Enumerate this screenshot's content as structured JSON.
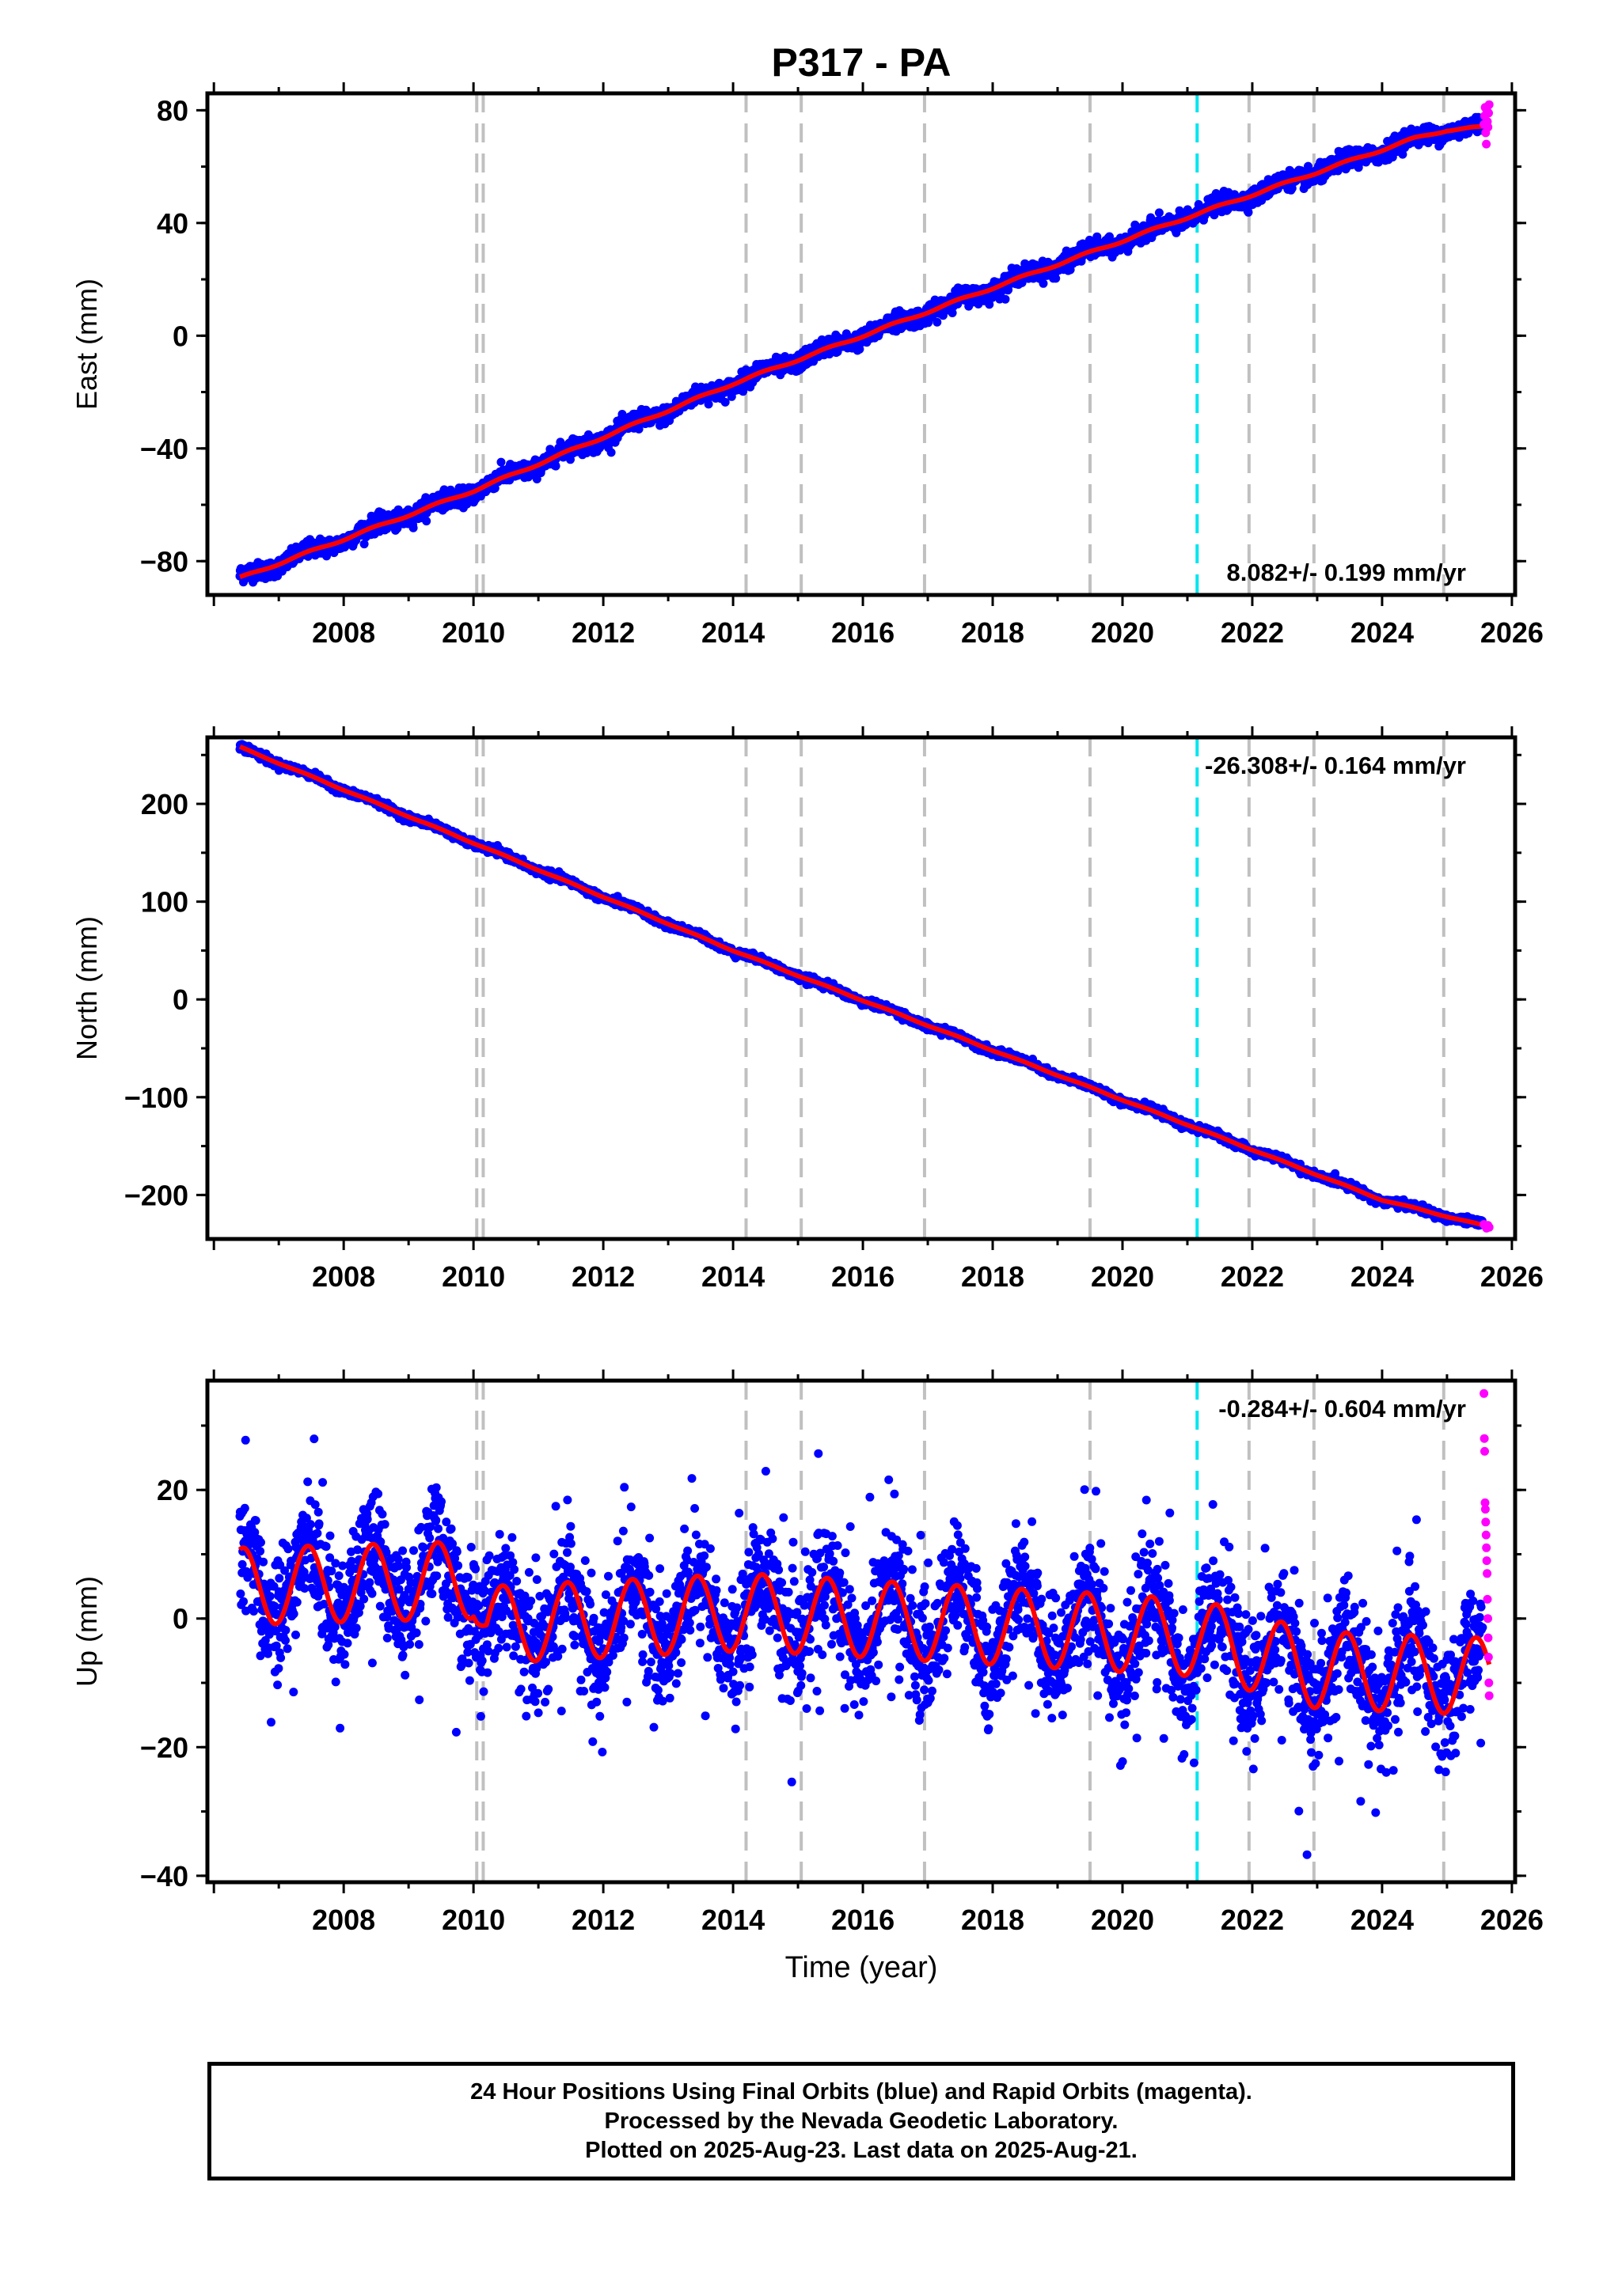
{
  "title": "P317 - PA",
  "footer": {
    "lines": [
      "24 Hour Positions Using Final Orbits (blue) and Rapid Orbits (magenta).",
      "Processed by the Nevada Geodetic Laboratory.",
      "Plotted on 2025-Aug-23. Last data on 2025-Aug-21."
    ]
  },
  "colors": {
    "final_orbits": "#0000ff",
    "rapid_orbits": "#ff00ff",
    "model_fit": "#ff0000",
    "equipment_change": "#c0c0c0",
    "earthquake": "#00e5ee"
  },
  "chart_data": [
    {
      "type": "scatter",
      "component": "east",
      "ylabel": "East (mm)",
      "xlabel": "",
      "xlim": [
        2005.9,
        2026.05
      ],
      "ylim": [
        -92,
        86
      ],
      "x_ticks": [
        "2008",
        "2010",
        "2012",
        "2014",
        "2016",
        "2018",
        "2020",
        "2022",
        "2024",
        "2026"
      ],
      "y_ticks": [
        "80",
        "40",
        "0",
        "−40",
        "−80"
      ],
      "rate_label": "8.082+/- 0.199 mm/yr",
      "rate_position": "bottom-right",
      "grid": false,
      "equipment_changes": [
        2010.05,
        2010.15,
        2014.2,
        2015.05,
        2016.95,
        2019.5,
        2021.95,
        2022.95,
        2024.95
      ],
      "earthquakes": [
        2021.15
      ],
      "final_series": {
        "start": 2006.4,
        "end": 2025.55,
        "y_start": -86,
        "y_end": 73,
        "noise": 1.5,
        "seasonal_amp": 1.2
      },
      "rapid_series": {
        "start": 2025.57,
        "end": 2025.65,
        "y_values": [
          75,
          78,
          81,
          72,
          68,
          80,
          76,
          74,
          79,
          82
        ]
      },
      "fit_points": [
        [
          2006.4,
          -86
        ],
        [
          2010.0,
          -55
        ],
        [
          2014.0,
          -17
        ],
        [
          2018.0,
          17
        ],
        [
          2021.0,
          42
        ],
        [
          2024.5,
          70
        ],
        [
          2025.0,
          73
        ],
        [
          2025.6,
          74
        ]
      ]
    },
    {
      "type": "scatter",
      "component": "north",
      "ylabel": "North (mm)",
      "xlabel": "",
      "xlim": [
        2005.9,
        2026.05
      ],
      "ylim": [
        -245,
        268
      ],
      "x_ticks": [
        "2008",
        "2010",
        "2012",
        "2014",
        "2016",
        "2018",
        "2020",
        "2022",
        "2024",
        "2026"
      ],
      "y_ticks": [
        "200",
        "100",
        "0",
        "−100",
        "−200"
      ],
      "rate_label": "-26.308+/- 0.164 mm/yr",
      "rate_position": "top-right",
      "grid": false,
      "equipment_changes": [
        2010.05,
        2010.15,
        2014.2,
        2015.05,
        2016.95,
        2019.5,
        2021.95,
        2022.95,
        2024.95
      ],
      "earthquakes": [
        2021.15
      ],
      "final_series": {
        "start": 2006.4,
        "end": 2025.55,
        "y_start": 258,
        "y_end": -232,
        "noise": 1.8,
        "seasonal_amp": 1.5
      },
      "rapid_series": {
        "start": 2025.57,
        "end": 2025.65,
        "y_values": [
          -230,
          -232,
          -234,
          -231,
          -233
        ]
      },
      "fit_points": [
        [
          2006.4,
          258
        ],
        [
          2010.0,
          160
        ],
        [
          2014.0,
          50
        ],
        [
          2018.0,
          -52
        ],
        [
          2021.0,
          -128
        ],
        [
          2024.0,
          -205
        ],
        [
          2025.6,
          -232
        ]
      ]
    },
    {
      "type": "scatter",
      "component": "up",
      "ylabel": "Up (mm)",
      "xlabel": "Time (year)",
      "xlim": [
        2005.9,
        2026.05
      ],
      "ylim": [
        -41,
        37
      ],
      "x_ticks": [
        "2008",
        "2010",
        "2012",
        "2014",
        "2016",
        "2018",
        "2020",
        "2022",
        "2024",
        "2026"
      ],
      "y_ticks": [
        "20",
        "0",
        "−20",
        "−40"
      ],
      "rate_label": "-0.284+/- 0.604 mm/yr",
      "rate_position": "top-right",
      "grid": false,
      "equipment_changes": [
        2010.05,
        2010.15,
        2014.2,
        2015.05,
        2016.95,
        2019.5,
        2021.95,
        2022.95,
        2024.95
      ],
      "earthquakes": [
        2021.15
      ],
      "final_series": {
        "start": 2006.4,
        "end": 2025.55,
        "y_start": 5,
        "y_end": -9,
        "noise": 4.5,
        "seasonal_amp": 6
      },
      "rapid_series": {
        "start": 2025.57,
        "end": 2025.65,
        "y_values": [
          35,
          28,
          26,
          18,
          17,
          15,
          13,
          11,
          9,
          7,
          3,
          0,
          -3,
          -6,
          -10,
          -12
        ]
      },
      "fit_points": [
        [
          2006.4,
          5
        ],
        [
          2010.0,
          6
        ],
        [
          2010.2,
          -1
        ],
        [
          2014.2,
          1
        ],
        [
          2019.5,
          -2
        ],
        [
          2021.15,
          -3
        ],
        [
          2023.0,
          -8
        ],
        [
          2025.6,
          -9
        ]
      ],
      "fit_seasonal_amp": 6
    }
  ]
}
